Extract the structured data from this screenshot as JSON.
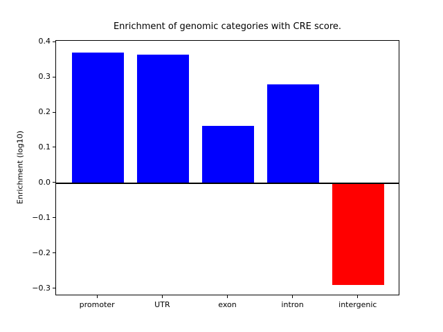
{
  "chart_data": {
    "type": "bar",
    "title": "Enrichment of genomic categories with CRE score.",
    "ylabel": "Enrichment (log10)",
    "xlabel": "",
    "categories": [
      "promoter",
      "UTR",
      "exon",
      "intron",
      "intergenic"
    ],
    "values": [
      0.371,
      0.365,
      0.162,
      0.28,
      -0.288
    ],
    "positive_color": "#0000ff",
    "negative_color": "#ff0000",
    "axis_color": "#000000",
    "background_color": "#ffffff",
    "ylim": [
      -0.32,
      0.404
    ],
    "xlim": [
      -0.64,
      4.64
    ],
    "bar_width": 0.8,
    "yticks": [
      0.4,
      0.3,
      0.2,
      0.1,
      0.0,
      -0.1,
      -0.2,
      -0.3
    ],
    "ytick_labels": [
      "0.4",
      "0.3",
      "0.2",
      "0.1",
      "0.0",
      "−0.1",
      "−0.2",
      "−0.3"
    ],
    "grid": false,
    "legend": "none",
    "zero_line": true
  }
}
